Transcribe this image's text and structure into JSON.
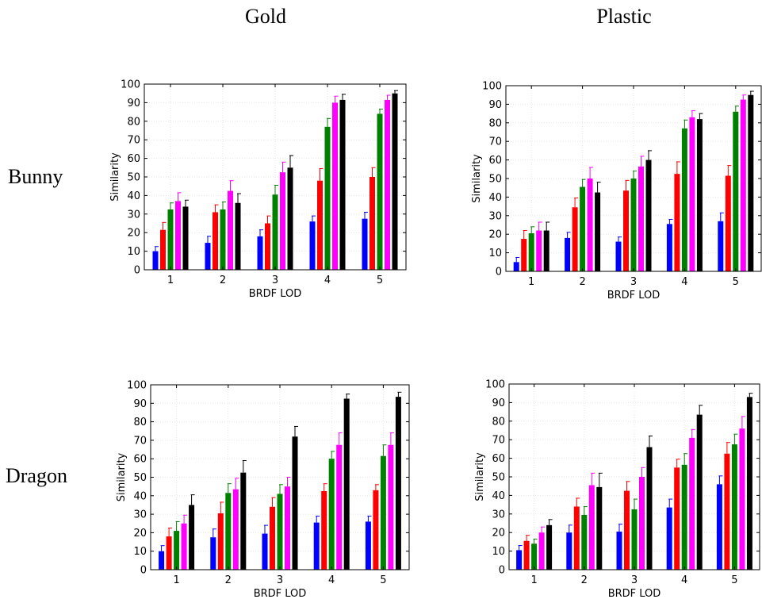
{
  "column_titles": [
    "Gold",
    "Plastic"
  ],
  "row_titles": [
    "Bunny",
    "Dragon"
  ],
  "colors": [
    "#0000ff",
    "#ff0000",
    "#008000",
    "#ff00ff",
    "#000000"
  ],
  "chart_data": [
    {
      "type": "bar",
      "title": "Gold",
      "row": "Bunny",
      "xlabel": "BRDF LOD",
      "ylabel": "Similarity",
      "categories": [
        "1",
        "2",
        "3",
        "4",
        "5"
      ],
      "yticks": [
        "0",
        "10",
        "20",
        "30",
        "40",
        "50",
        "60",
        "70",
        "80",
        "90",
        "100"
      ],
      "ylim": [
        0,
        100
      ],
      "grid": true,
      "series": [
        {
          "values": [
            10,
            14.5,
            18,
            26,
            27.5
          ],
          "errors": [
            2.5,
            3.5,
            3.5,
            3,
            3.5
          ]
        },
        {
          "values": [
            21.5,
            31,
            25,
            48,
            50
          ],
          "errors": [
            4,
            4,
            4,
            6.5,
            5
          ]
        },
        {
          "values": [
            32.5,
            32.5,
            40.5,
            77,
            84
          ],
          "errors": [
            3.5,
            4,
            5,
            4.5,
            2.5
          ]
        },
        {
          "values": [
            37,
            42.5,
            52.5,
            90,
            91.5
          ],
          "errors": [
            4.5,
            5.5,
            5.5,
            3.5,
            2.5
          ]
        },
        {
          "values": [
            34,
            36,
            55,
            91.5,
            95
          ],
          "errors": [
            3.5,
            5,
            6.5,
            3,
            1.5
          ]
        }
      ]
    },
    {
      "type": "bar",
      "title": "Plastic",
      "row": "Bunny",
      "xlabel": "BRDF LOD",
      "ylabel": "Similarity",
      "categories": [
        "1",
        "2",
        "3",
        "4",
        "5"
      ],
      "yticks": [
        "0",
        "10",
        "20",
        "30",
        "40",
        "50",
        "60",
        "70",
        "80",
        "90",
        "100"
      ],
      "ylim": [
        0,
        100
      ],
      "grid": true,
      "series": [
        {
          "values": [
            5,
            18,
            16,
            25.5,
            27
          ],
          "errors": [
            2.5,
            3,
            2.5,
            2.5,
            4.5
          ]
        },
        {
          "values": [
            17.5,
            34.5,
            43.5,
            52.5,
            51.5
          ],
          "errors": [
            4.5,
            5,
            5.5,
            6.5,
            5.5
          ]
        },
        {
          "values": [
            20.5,
            45.5,
            50,
            77,
            86
          ],
          "errors": [
            3.5,
            4,
            4,
            4.5,
            3
          ]
        },
        {
          "values": [
            22,
            50,
            56.5,
            83,
            92.5
          ],
          "errors": [
            4.5,
            6,
            5.5,
            3.5,
            2.5
          ]
        },
        {
          "values": [
            22,
            42.5,
            60,
            82,
            95
          ],
          "errors": [
            4.5,
            5.5,
            5,
            3,
            2
          ]
        }
      ]
    },
    {
      "type": "bar",
      "title": "Gold",
      "row": "Dragon",
      "xlabel": "BRDF LOD",
      "ylabel": "Similarity",
      "categories": [
        "1",
        "2",
        "3",
        "4",
        "5"
      ],
      "yticks": [
        "0",
        "10",
        "20",
        "30",
        "40",
        "50",
        "60",
        "70",
        "80",
        "90",
        "100"
      ],
      "ylim": [
        0,
        100
      ],
      "grid": true,
      "series": [
        {
          "values": [
            10,
            17.5,
            19.5,
            25.5,
            26
          ],
          "errors": [
            3,
            4.5,
            4.5,
            3.5,
            3
          ]
        },
        {
          "values": [
            18,
            30.5,
            34,
            42.5,
            43
          ],
          "errors": [
            4.5,
            6,
            5,
            4,
            3
          ]
        },
        {
          "values": [
            21,
            41.5,
            41,
            60,
            61.5
          ],
          "errors": [
            5,
            5,
            5,
            4,
            6
          ]
        },
        {
          "values": [
            25,
            43.5,
            45,
            67.5,
            67.5
          ],
          "errors": [
            4.5,
            6,
            5,
            6.5,
            6.5
          ]
        },
        {
          "values": [
            35,
            52.5,
            72,
            92.5,
            93.5
          ],
          "errors": [
            5.5,
            6.5,
            5.5,
            2.5,
            2.5
          ]
        }
      ]
    },
    {
      "type": "bar",
      "title": "Plastic",
      "row": "Dragon",
      "xlabel": "BRDF LOD",
      "ylabel": "Similarity",
      "categories": [
        "1",
        "2",
        "3",
        "4",
        "5"
      ],
      "yticks": [
        "0",
        "10",
        "20",
        "30",
        "40",
        "50",
        "60",
        "70",
        "80",
        "90",
        "100"
      ],
      "ylim": [
        0,
        100
      ],
      "grid": true,
      "series": [
        {
          "values": [
            10.5,
            20,
            20.5,
            33.5,
            46
          ],
          "errors": [
            2.5,
            4,
            4,
            4.5,
            4.5
          ]
        },
        {
          "values": [
            15.5,
            34,
            42.5,
            55,
            62.5
          ],
          "errors": [
            3,
            4.5,
            5,
            4.5,
            6
          ]
        },
        {
          "values": [
            14,
            29.5,
            32.5,
            56.5,
            67.5
          ],
          "errors": [
            2.5,
            4.5,
            5.5,
            6,
            5.5
          ]
        },
        {
          "values": [
            20,
            45.5,
            50,
            71,
            76
          ],
          "errors": [
            3,
            6.5,
            5,
            4.5,
            6.5
          ]
        },
        {
          "values": [
            24,
            44.5,
            66,
            83.5,
            93
          ],
          "errors": [
            3,
            7.5,
            6,
            5,
            2
          ]
        }
      ]
    }
  ]
}
